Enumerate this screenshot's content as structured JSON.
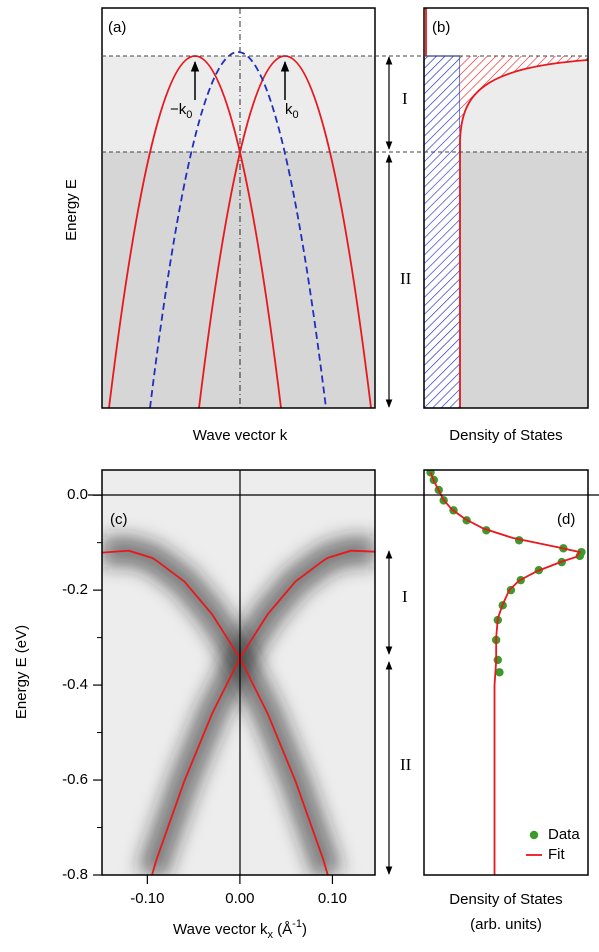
{
  "panel_a": {
    "label": "(a)",
    "minus_k0": [
      "−k",
      "0"
    ],
    "k0": [
      "k",
      "0"
    ],
    "region_labels": [
      "I",
      "II"
    ],
    "y_label": "Energy E",
    "x_label": "Wave vector k"
  },
  "panel_b": {
    "label": "(b)",
    "x_label": "Density of States"
  },
  "chart_data": [
    {
      "type": "line",
      "label": "(c)",
      "region_labels": [
        "I",
        "II"
      ],
      "y_label": "Energy E (eV)",
      "x_label": [
        "Wave vector k",
        "x",
        " (Å",
        "-1",
        ")"
      ],
      "xlim": [
        -0.149,
        0.146
      ],
      "ylim": [
        -0.8,
        0.053
      ],
      "xticks": [
        {
          "value": -0.1,
          "label": "-0.10"
        },
        {
          "value": 0,
          "label": "0.00"
        },
        {
          "value": 0.1,
          "label": "0.10"
        }
      ],
      "yticks": [
        {
          "value": 0,
          "label": "0.0"
        },
        -0.2,
        -0.4,
        -0.6,
        -0.8
      ],
      "minor_yticks": [
        -0.1,
        -0.3,
        -0.5,
        -0.7
      ],
      "x": [
        -0.149,
        -0.12,
        -0.095,
        -0.09,
        -0.06,
        -0.03,
        0,
        0.03,
        0.06,
        0.09,
        0.095,
        0.12,
        0.146
      ],
      "series": [
        {
          "color": "#e8181c",
          "values": [
            null,
            null,
            -0.8,
            -0.767,
            -0.602,
            -0.46,
            -0.343,
            -0.251,
            -0.182,
            -0.138,
            -0.132,
            -0.117,
            -0.119
          ]
        },
        {
          "color": "#e8181c",
          "values": [
            -0.121,
            -0.117,
            -0.132,
            -0.138,
            -0.182,
            -0.251,
            -0.343,
            -0.46,
            -0.602,
            -0.767,
            -0.8,
            null,
            null
          ]
        }
      ]
    },
    {
      "type": "scatter",
      "label": "(d)",
      "x_label": [
        "Density of States",
        "(arb. units)"
      ],
      "xlim": [
        0,
        1
      ],
      "ylim": [
        -0.8,
        0.053
      ],
      "legend": "lower right",
      "series": [
        {
          "name": "Data",
          "color": "#3c9a2c",
          "style": "markers",
          "energy": [
            0.048,
            0.032,
            0.011,
            -0.011,
            -0.032,
            -0.053,
            -0.074,
            -0.095,
            -0.112,
            -0.12,
            -0.128,
            -0.141,
            -0.158,
            -0.179,
            -0.2,
            -0.232,
            -0.263,
            -0.305,
            -0.347,
            -0.373
          ],
          "values": [
            0.04,
            0.06,
            0.09,
            0.12,
            0.18,
            0.26,
            0.38,
            0.58,
            0.85,
            0.96,
            0.95,
            0.84,
            0.7,
            0.59,
            0.53,
            0.48,
            0.45,
            0.44,
            0.45,
            0.46
          ]
        },
        {
          "name": "Fit",
          "color": "#e8181c",
          "style": "line",
          "energy": [
            0.048,
            0.03,
            0.01,
            -0.01,
            -0.03,
            -0.05,
            -0.07,
            -0.09,
            -0.11,
            -0.12,
            -0.13,
            -0.14,
            -0.16,
            -0.18,
            -0.2,
            -0.23,
            -0.26,
            -0.3,
            -0.35,
            -0.4,
            -0.8
          ],
          "values": [
            0.04,
            0.06,
            0.09,
            0.12,
            0.17,
            0.25,
            0.36,
            0.54,
            0.82,
            0.95,
            0.93,
            0.84,
            0.69,
            0.58,
            0.52,
            0.48,
            0.45,
            0.44,
            0.44,
            0.43,
            0.43
          ]
        }
      ]
    }
  ]
}
